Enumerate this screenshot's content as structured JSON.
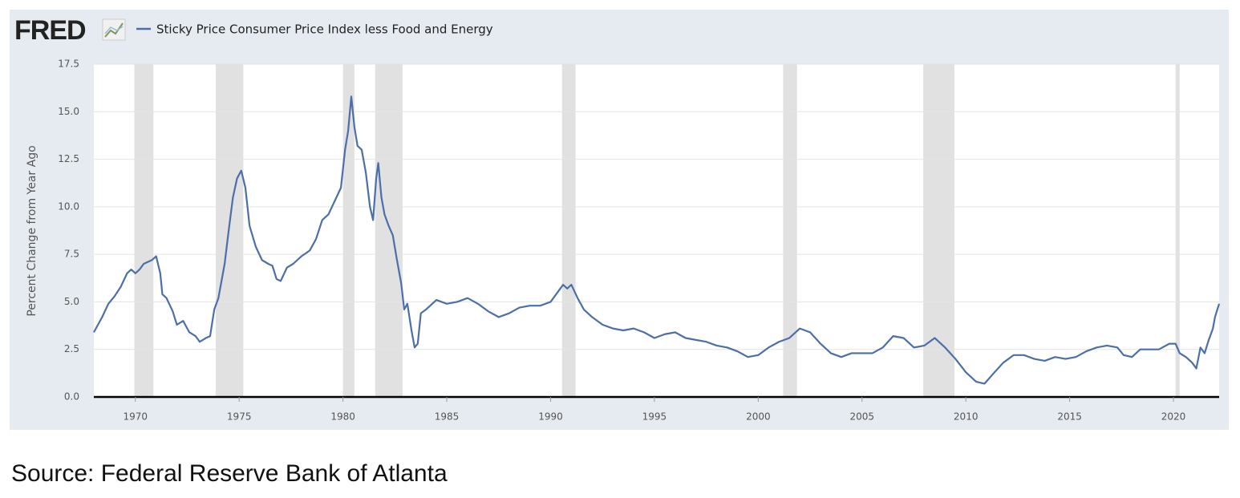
{
  "chart_data": {
    "type": "line",
    "logo": "FRED",
    "y_label": "Percent Change from Year Ago",
    "source": "Source: Federal Reserve Bank of Atlanta",
    "xlim": [
      1968,
      2022.2
    ],
    "xticks": [
      1970,
      1975,
      1980,
      1985,
      1990,
      1995,
      2000,
      2005,
      2010,
      2015,
      2020
    ],
    "ylim": [
      0,
      17.5
    ],
    "yticks": [
      {
        "value": 0,
        "label": "0.0"
      },
      2.5,
      {
        "value": 5,
        "label": "5.0"
      },
      7.5,
      {
        "value": 10,
        "label": "10.0"
      },
      12.5,
      {
        "value": 15,
        "label": "15.0"
      },
      17.5
    ],
    "grid": true,
    "recession_color": "#e1e1e1",
    "recessions": [
      [
        1969.95,
        1970.87
      ],
      [
        1973.87,
        1975.2
      ],
      [
        1980.0,
        1980.55
      ],
      [
        1981.55,
        1982.87
      ],
      [
        1990.55,
        1991.2
      ],
      [
        2001.2,
        2001.87
      ],
      [
        2007.95,
        2009.45
      ],
      [
        2020.1,
        2020.3
      ]
    ],
    "x": [
      1968.0,
      1968.2,
      1968.4,
      1968.7,
      1969.0,
      1969.3,
      1969.6,
      1969.8,
      1970.0,
      1970.2,
      1970.4,
      1970.6,
      1970.8,
      1971.0,
      1971.2,
      1971.3,
      1971.5,
      1971.8,
      1972.0,
      1972.3,
      1972.6,
      1972.9,
      1973.1,
      1973.4,
      1973.6,
      1973.8,
      1974.0,
      1974.3,
      1974.5,
      1974.7,
      1974.9,
      1975.1,
      1975.3,
      1975.5,
      1975.8,
      1976.1,
      1976.4,
      1976.6,
      1976.8,
      1977.0,
      1977.3,
      1977.6,
      1978.0,
      1978.4,
      1978.7,
      1979.0,
      1979.3,
      1979.6,
      1979.9,
      1980.1,
      1980.25,
      1980.4,
      1980.55,
      1980.7,
      1980.9,
      1981.1,
      1981.3,
      1981.45,
      1981.6,
      1981.7,
      1981.85,
      1982.0,
      1982.2,
      1982.4,
      1982.6,
      1982.8,
      1982.95,
      1983.1,
      1983.3,
      1983.45,
      1983.6,
      1983.75,
      1984.0,
      1984.5,
      1985.0,
      1985.5,
      1986.0,
      1986.5,
      1987.0,
      1987.5,
      1988.0,
      1988.5,
      1989.0,
      1989.5,
      1990.0,
      1990.4,
      1990.6,
      1990.8,
      1991.0,
      1991.3,
      1991.6,
      1992.0,
      1992.5,
      1993.0,
      1993.5,
      1994.0,
      1994.5,
      1995.0,
      1995.5,
      1996.0,
      1996.5,
      1997.0,
      1997.5,
      1998.0,
      1998.5,
      1999.0,
      1999.5,
      2000.0,
      2000.5,
      2001.0,
      2001.5,
      2002.0,
      2002.5,
      2003.0,
      2003.5,
      2004.0,
      2004.5,
      2005.0,
      2005.5,
      2006.0,
      2006.5,
      2007.0,
      2007.5,
      2008.0,
      2008.5,
      2009.0,
      2009.5,
      2010.0,
      2010.5,
      2010.9,
      2011.3,
      2011.8,
      2012.3,
      2012.8,
      2013.3,
      2013.8,
      2014.3,
      2014.8,
      2015.3,
      2015.8,
      2016.3,
      2016.8,
      2017.3,
      2017.6,
      2018.0,
      2018.4,
      2018.8,
      2019.3,
      2019.8,
      2020.1,
      2020.3,
      2020.6,
      2020.9,
      2021.1,
      2021.3,
      2021.5,
      2021.7,
      2021.9,
      2022.0,
      2022.2
    ],
    "series": [
      {
        "name": "Sticky Price Consumer Price Index less Food and Energy",
        "color": "#4c6fa8",
        "values": [
          3.4,
          3.8,
          4.2,
          4.9,
          5.3,
          5.8,
          6.5,
          6.7,
          6.5,
          6.7,
          7.0,
          7.1,
          7.2,
          7.4,
          6.5,
          5.4,
          5.2,
          4.5,
          3.8,
          4.0,
          3.4,
          3.2,
          2.9,
          3.1,
          3.2,
          4.6,
          5.2,
          7.0,
          8.8,
          10.5,
          11.5,
          11.9,
          11.0,
          9.0,
          7.9,
          7.2,
          7.0,
          6.9,
          6.2,
          6.1,
          6.8,
          7.0,
          7.4,
          7.7,
          8.3,
          9.3,
          9.6,
          10.3,
          11.0,
          13.0,
          14.0,
          15.8,
          14.2,
          13.2,
          13.0,
          11.8,
          10.0,
          9.3,
          11.5,
          12.3,
          10.5,
          9.6,
          9.0,
          8.5,
          7.2,
          6.0,
          4.6,
          4.9,
          3.5,
          2.6,
          2.8,
          4.4,
          4.6,
          5.1,
          4.9,
          5.0,
          5.2,
          4.9,
          4.5,
          4.2,
          4.4,
          4.7,
          4.8,
          4.8,
          5.0,
          5.6,
          5.9,
          5.7,
          5.9,
          5.2,
          4.6,
          4.2,
          3.8,
          3.6,
          3.5,
          3.6,
          3.4,
          3.1,
          3.3,
          3.4,
          3.1,
          3.0,
          2.9,
          2.7,
          2.6,
          2.4,
          2.1,
          2.2,
          2.6,
          2.9,
          3.1,
          3.6,
          3.4,
          2.8,
          2.3,
          2.1,
          2.3,
          2.3,
          2.3,
          2.6,
          3.2,
          3.1,
          2.6,
          2.7,
          3.1,
          2.6,
          2.0,
          1.3,
          0.8,
          0.7,
          1.2,
          1.8,
          2.2,
          2.2,
          2.0,
          1.9,
          2.1,
          2.0,
          2.1,
          2.4,
          2.6,
          2.7,
          2.6,
          2.2,
          2.1,
          2.5,
          2.5,
          2.5,
          2.8,
          2.8,
          2.3,
          2.1,
          1.8,
          1.5,
          2.6,
          2.3,
          3.0,
          3.6,
          4.2,
          4.9
        ]
      }
    ]
  }
}
